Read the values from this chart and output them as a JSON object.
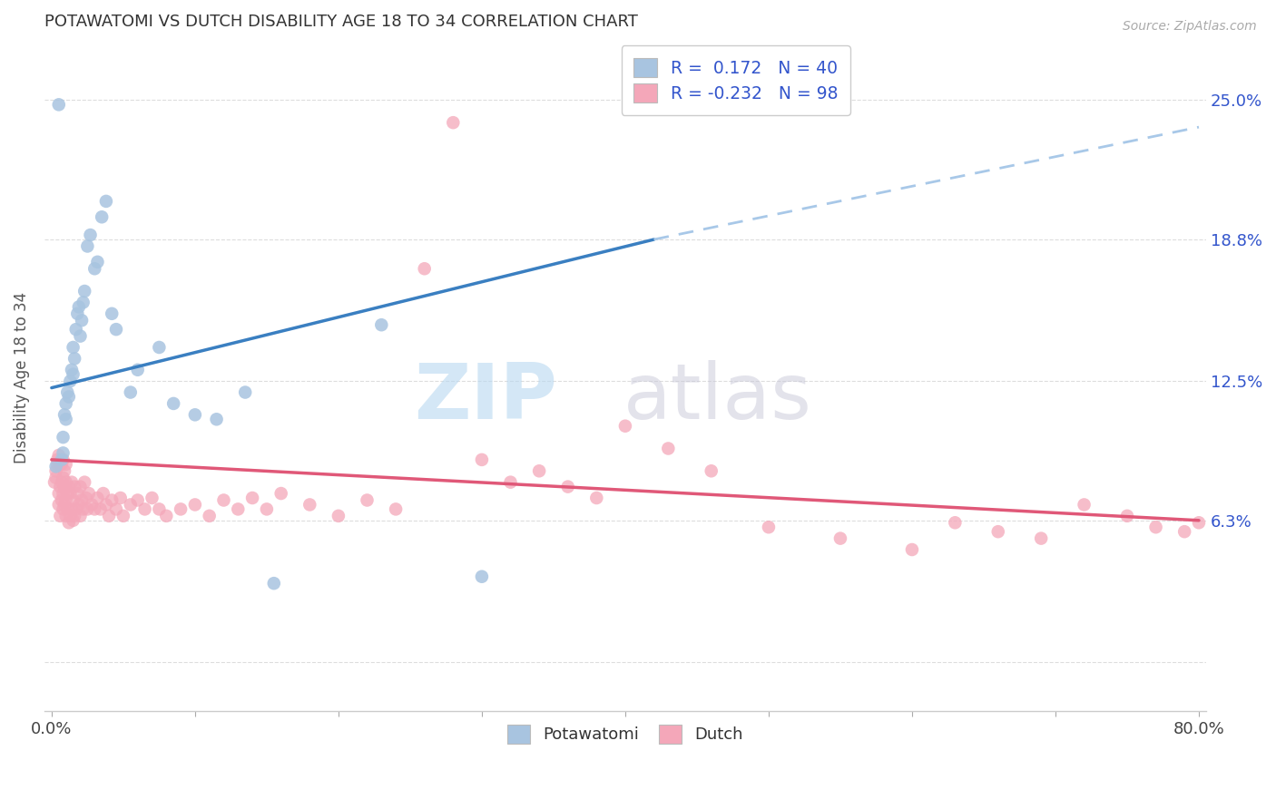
{
  "title": "POTAWATOMI VS DUTCH DISABILITY AGE 18 TO 34 CORRELATION CHART",
  "source": "Source: ZipAtlas.com",
  "ylabel": "Disability Age 18 to 34",
  "xlim": [
    -0.005,
    0.805
  ],
  "ylim": [
    -0.022,
    0.275
  ],
  "xtick_pos": [
    0.0,
    0.1,
    0.2,
    0.3,
    0.4,
    0.5,
    0.6,
    0.7,
    0.8
  ],
  "xticklabels": [
    "0.0%",
    "",
    "",
    "",
    "",
    "",
    "",
    "",
    "80.0%"
  ],
  "ytick_pos": [
    0.0,
    0.063,
    0.125,
    0.188,
    0.25
  ],
  "ytick_labels": [
    "",
    "6.3%",
    "12.5%",
    "18.8%",
    "25.0%"
  ],
  "potawatomi_color": "#a8c4e0",
  "dutch_color": "#f4a7b9",
  "trend_blue_color": "#3a7fc1",
  "trend_blue_dashed_color": "#a8c8e8",
  "trend_pink_color": "#e05878",
  "legend_color": "#3355cc",
  "watermark_zip_color": "#b8d8f0",
  "watermark_atlas_color": "#c8c8d8",
  "pot_x": [
    0.003,
    0.005,
    0.007,
    0.008,
    0.008,
    0.009,
    0.01,
    0.01,
    0.011,
    0.012,
    0.013,
    0.014,
    0.015,
    0.015,
    0.016,
    0.017,
    0.018,
    0.019,
    0.02,
    0.021,
    0.022,
    0.023,
    0.025,
    0.027,
    0.03,
    0.032,
    0.035,
    0.038,
    0.042,
    0.045,
    0.055,
    0.06,
    0.075,
    0.085,
    0.1,
    0.115,
    0.135,
    0.155,
    0.23,
    0.3
  ],
  "pot_y": [
    0.087,
    0.248,
    0.09,
    0.093,
    0.1,
    0.11,
    0.108,
    0.115,
    0.12,
    0.118,
    0.125,
    0.13,
    0.128,
    0.14,
    0.135,
    0.148,
    0.155,
    0.158,
    0.145,
    0.152,
    0.16,
    0.165,
    0.185,
    0.19,
    0.175,
    0.178,
    0.198,
    0.205,
    0.155,
    0.148,
    0.12,
    0.13,
    0.14,
    0.115,
    0.11,
    0.108,
    0.12,
    0.035,
    0.15,
    0.038
  ],
  "dutch_x": [
    0.002,
    0.003,
    0.003,
    0.004,
    0.004,
    0.005,
    0.005,
    0.005,
    0.006,
    0.006,
    0.006,
    0.007,
    0.007,
    0.007,
    0.008,
    0.008,
    0.008,
    0.008,
    0.009,
    0.009,
    0.009,
    0.01,
    0.01,
    0.01,
    0.01,
    0.011,
    0.011,
    0.012,
    0.012,
    0.013,
    0.013,
    0.014,
    0.014,
    0.015,
    0.015,
    0.016,
    0.016,
    0.017,
    0.018,
    0.019,
    0.02,
    0.02,
    0.021,
    0.022,
    0.023,
    0.024,
    0.025,
    0.026,
    0.028,
    0.03,
    0.032,
    0.034,
    0.036,
    0.038,
    0.04,
    0.042,
    0.045,
    0.048,
    0.05,
    0.055,
    0.06,
    0.065,
    0.07,
    0.075,
    0.08,
    0.09,
    0.1,
    0.11,
    0.12,
    0.13,
    0.14,
    0.15,
    0.16,
    0.18,
    0.2,
    0.22,
    0.24,
    0.26,
    0.28,
    0.3,
    0.32,
    0.34,
    0.36,
    0.38,
    0.4,
    0.43,
    0.46,
    0.5,
    0.55,
    0.6,
    0.63,
    0.66,
    0.69,
    0.72,
    0.75,
    0.77,
    0.79,
    0.8
  ],
  "dutch_y": [
    0.08,
    0.082,
    0.085,
    0.088,
    0.09,
    0.07,
    0.075,
    0.092,
    0.065,
    0.078,
    0.088,
    0.072,
    0.08,
    0.088,
    0.068,
    0.075,
    0.082,
    0.09,
    0.07,
    0.078,
    0.085,
    0.065,
    0.072,
    0.08,
    0.088,
    0.068,
    0.075,
    0.062,
    0.078,
    0.065,
    0.075,
    0.068,
    0.08,
    0.063,
    0.072,
    0.065,
    0.078,
    0.068,
    0.075,
    0.07,
    0.065,
    0.078,
    0.072,
    0.068,
    0.08,
    0.073,
    0.068,
    0.075,
    0.07,
    0.068,
    0.073,
    0.068,
    0.075,
    0.07,
    0.065,
    0.072,
    0.068,
    0.073,
    0.065,
    0.07,
    0.072,
    0.068,
    0.073,
    0.068,
    0.065,
    0.068,
    0.07,
    0.065,
    0.072,
    0.068,
    0.073,
    0.068,
    0.075,
    0.07,
    0.065,
    0.072,
    0.068,
    0.175,
    0.24,
    0.09,
    0.08,
    0.085,
    0.078,
    0.073,
    0.105,
    0.095,
    0.085,
    0.06,
    0.055,
    0.05,
    0.062,
    0.058,
    0.055,
    0.07,
    0.065,
    0.06,
    0.058,
    0.062
  ],
  "pot_trend_x0": 0.0,
  "pot_trend_x1": 0.42,
  "pot_trend_x2": 0.8,
  "pot_trend_y0": 0.122,
  "pot_trend_y1": 0.188,
  "pot_trend_y2": 0.238,
  "dutch_trend_x0": 0.0,
  "dutch_trend_x1": 0.8,
  "dutch_trend_y0": 0.09,
  "dutch_trend_y1": 0.063
}
